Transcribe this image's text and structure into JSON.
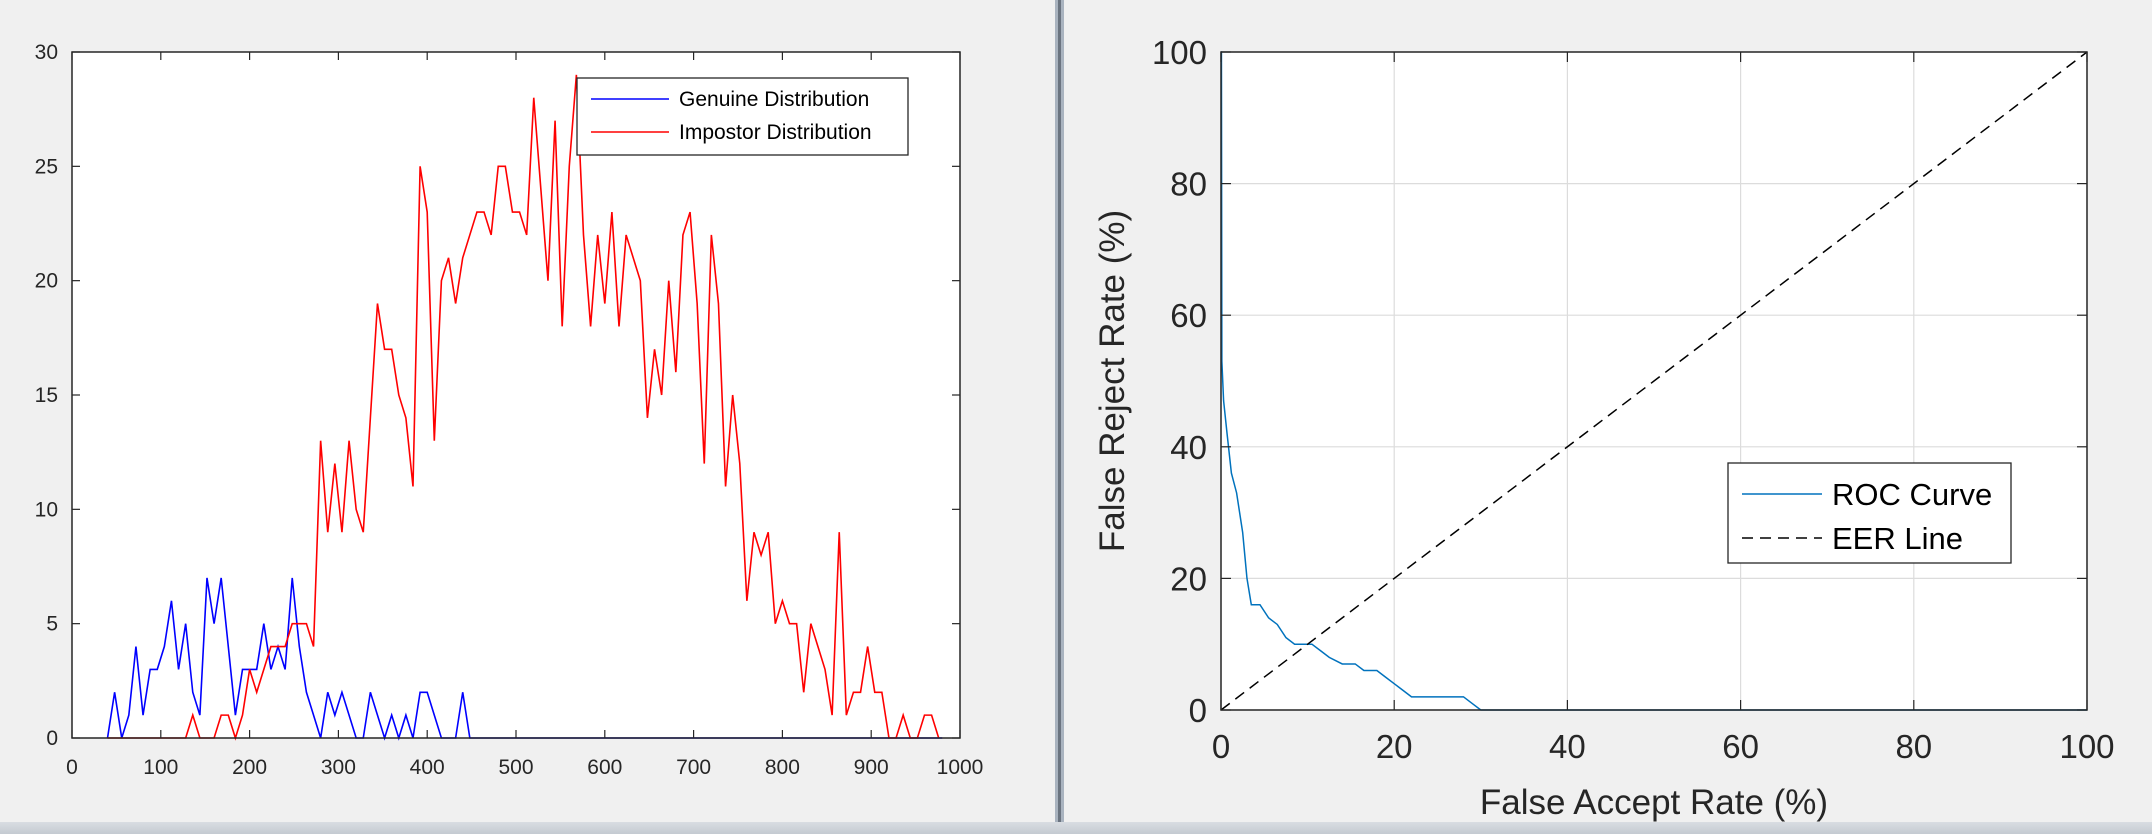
{
  "chart_data": [
    {
      "type": "line",
      "title": "",
      "xlabel": "",
      "ylabel": "",
      "xlim": [
        0,
        1000
      ],
      "ylim": [
        0,
        30
      ],
      "xticks": [
        "0",
        "100",
        "200",
        "300",
        "400",
        "500",
        "600",
        "700",
        "800",
        "900",
        "1000"
      ],
      "yticks": [
        "0",
        "5",
        "10",
        "15",
        "20",
        "25",
        "30"
      ],
      "grid": false,
      "legend_position": "top-right",
      "series": [
        {
          "name": "Genuine Distribution",
          "color": "#0000ff",
          "points": [
            [
              40,
              0
            ],
            [
              48,
              2
            ],
            [
              56,
              0
            ],
            [
              64,
              1
            ],
            [
              72,
              4
            ],
            [
              80,
              1
            ],
            [
              88,
              3
            ],
            [
              96,
              3
            ],
            [
              104,
              4
            ],
            [
              112,
              6
            ],
            [
              120,
              3
            ],
            [
              128,
              5
            ],
            [
              136,
              2
            ],
            [
              144,
              1
            ],
            [
              152,
              7
            ],
            [
              160,
              5
            ],
            [
              168,
              7
            ],
            [
              176,
              4
            ],
            [
              184,
              1
            ],
            [
              192,
              3
            ],
            [
              200,
              3
            ],
            [
              208,
              3
            ],
            [
              216,
              5
            ],
            [
              224,
              3
            ],
            [
              232,
              4
            ],
            [
              240,
              3
            ],
            [
              248,
              7
            ],
            [
              256,
              4
            ],
            [
              264,
              2
            ],
            [
              272,
              1
            ],
            [
              280,
              0
            ],
            [
              288,
              2
            ],
            [
              296,
              1
            ],
            [
              304,
              2
            ],
            [
              312,
              1
            ],
            [
              320,
              0
            ],
            [
              328,
              0
            ],
            [
              336,
              2
            ],
            [
              344,
              1
            ],
            [
              352,
              0
            ],
            [
              360,
              1
            ],
            [
              368,
              0
            ],
            [
              376,
              1
            ],
            [
              384,
              0
            ],
            [
              392,
              2
            ],
            [
              400,
              2
            ],
            [
              408,
              1
            ],
            [
              416,
              0
            ],
            [
              424,
              0
            ],
            [
              432,
              0
            ],
            [
              440,
              2
            ],
            [
              448,
              0
            ],
            [
              460,
              0
            ],
            [
              980,
              0
            ]
          ]
        },
        {
          "name": "Impostor Distribution",
          "color": "#ff0000",
          "points": [
            [
              40,
              0
            ],
            [
              100,
              0
            ],
            [
              128,
              0
            ],
            [
              136,
              1
            ],
            [
              144,
              0
            ],
            [
              152,
              0
            ],
            [
              160,
              0
            ],
            [
              168,
              1
            ],
            [
              176,
              1
            ],
            [
              184,
              0
            ],
            [
              192,
              1
            ],
            [
              200,
              3
            ],
            [
              208,
              2
            ],
            [
              216,
              3
            ],
            [
              224,
              4
            ],
            [
              232,
              4
            ],
            [
              240,
              4
            ],
            [
              248,
              5
            ],
            [
              256,
              5
            ],
            [
              264,
              5
            ],
            [
              272,
              4
            ],
            [
              280,
              13
            ],
            [
              288,
              9
            ],
            [
              296,
              12
            ],
            [
              304,
              9
            ],
            [
              312,
              13
            ],
            [
              320,
              10
            ],
            [
              328,
              9
            ],
            [
              336,
              14
            ],
            [
              344,
              19
            ],
            [
              352,
              17
            ],
            [
              360,
              17
            ],
            [
              368,
              15
            ],
            [
              376,
              14
            ],
            [
              384,
              11
            ],
            [
              392,
              25
            ],
            [
              400,
              23
            ],
            [
              408,
              13
            ],
            [
              416,
              20
            ],
            [
              424,
              21
            ],
            [
              432,
              19
            ],
            [
              440,
              21
            ],
            [
              448,
              22
            ],
            [
              456,
              23
            ],
            [
              464,
              23
            ],
            [
              472,
              22
            ],
            [
              480,
              25
            ],
            [
              488,
              25
            ],
            [
              496,
              23
            ],
            [
              504,
              23
            ],
            [
              512,
              22
            ],
            [
              520,
              28
            ],
            [
              528,
              24
            ],
            [
              536,
              20
            ],
            [
              544,
              27
            ],
            [
              552,
              18
            ],
            [
              560,
              25
            ],
            [
              568,
              29
            ],
            [
              576,
              22
            ],
            [
              584,
              18
            ],
            [
              592,
              22
            ],
            [
              600,
              19
            ],
            [
              608,
              23
            ],
            [
              616,
              18
            ],
            [
              624,
              22
            ],
            [
              632,
              21
            ],
            [
              640,
              20
            ],
            [
              648,
              14
            ],
            [
              656,
              17
            ],
            [
              664,
              15
            ],
            [
              672,
              20
            ],
            [
              680,
              16
            ],
            [
              688,
              22
            ],
            [
              696,
              23
            ],
            [
              704,
              19
            ],
            [
              712,
              12
            ],
            [
              720,
              22
            ],
            [
              728,
              19
            ],
            [
              736,
              11
            ],
            [
              744,
              15
            ],
            [
              752,
              12
            ],
            [
              760,
              6
            ],
            [
              768,
              9
            ],
            [
              776,
              8
            ],
            [
              784,
              9
            ],
            [
              792,
              5
            ],
            [
              800,
              6
            ],
            [
              808,
              5
            ],
            [
              816,
              5
            ],
            [
              824,
              2
            ],
            [
              832,
              5
            ],
            [
              840,
              4
            ],
            [
              848,
              3
            ],
            [
              856,
              1
            ],
            [
              864,
              9
            ],
            [
              872,
              1
            ],
            [
              880,
              2
            ],
            [
              888,
              2
            ],
            [
              896,
              4
            ],
            [
              904,
              2
            ],
            [
              912,
              2
            ],
            [
              920,
              0
            ],
            [
              928,
              0
            ],
            [
              936,
              1
            ],
            [
              944,
              0
            ],
            [
              952,
              0
            ],
            [
              960,
              1
            ],
            [
              968,
              1
            ],
            [
              976,
              0
            ]
          ]
        }
      ]
    },
    {
      "type": "line",
      "title": "",
      "xlabel": "False Accept Rate (%)",
      "ylabel": "False Reject Rate (%)",
      "xlim": [
        0,
        100
      ],
      "ylim": [
        0,
        100
      ],
      "xticks": [
        "0",
        "20",
        "40",
        "60",
        "80",
        "100"
      ],
      "yticks": [
        "0",
        "20",
        "40",
        "60",
        "80",
        "100"
      ],
      "grid": true,
      "legend_position": "lower-right",
      "series": [
        {
          "name": "ROC Curve",
          "color": "#0072bd",
          "style": "solid",
          "points": [
            [
              0,
              100
            ],
            [
              0.05,
              100
            ],
            [
              0.1,
              53
            ],
            [
              0.3,
              47
            ],
            [
              0.7,
              42
            ],
            [
              1.2,
              36
            ],
            [
              1.8,
              33
            ],
            [
              2.5,
              27
            ],
            [
              3.0,
              20
            ],
            [
              3.5,
              16
            ],
            [
              4.5,
              16
            ],
            [
              5.5,
              14
            ],
            [
              6.5,
              13
            ],
            [
              7.5,
              11
            ],
            [
              8.5,
              10
            ],
            [
              10.5,
              10
            ],
            [
              11.5,
              9
            ],
            [
              12.5,
              8
            ],
            [
              14,
              7
            ],
            [
              15.5,
              7
            ],
            [
              16.5,
              6
            ],
            [
              18,
              6
            ],
            [
              19,
              5
            ],
            [
              20,
              4
            ],
            [
              21,
              3
            ],
            [
              22,
              2
            ],
            [
              26,
              2
            ],
            [
              28,
              2
            ],
            [
              29,
              1
            ],
            [
              30,
              0
            ],
            [
              100,
              0
            ]
          ]
        },
        {
          "name": "EER Line",
          "color": "#000000",
          "style": "dashed",
          "points": [
            [
              0,
              0
            ],
            [
              100,
              100
            ]
          ]
        }
      ]
    }
  ]
}
